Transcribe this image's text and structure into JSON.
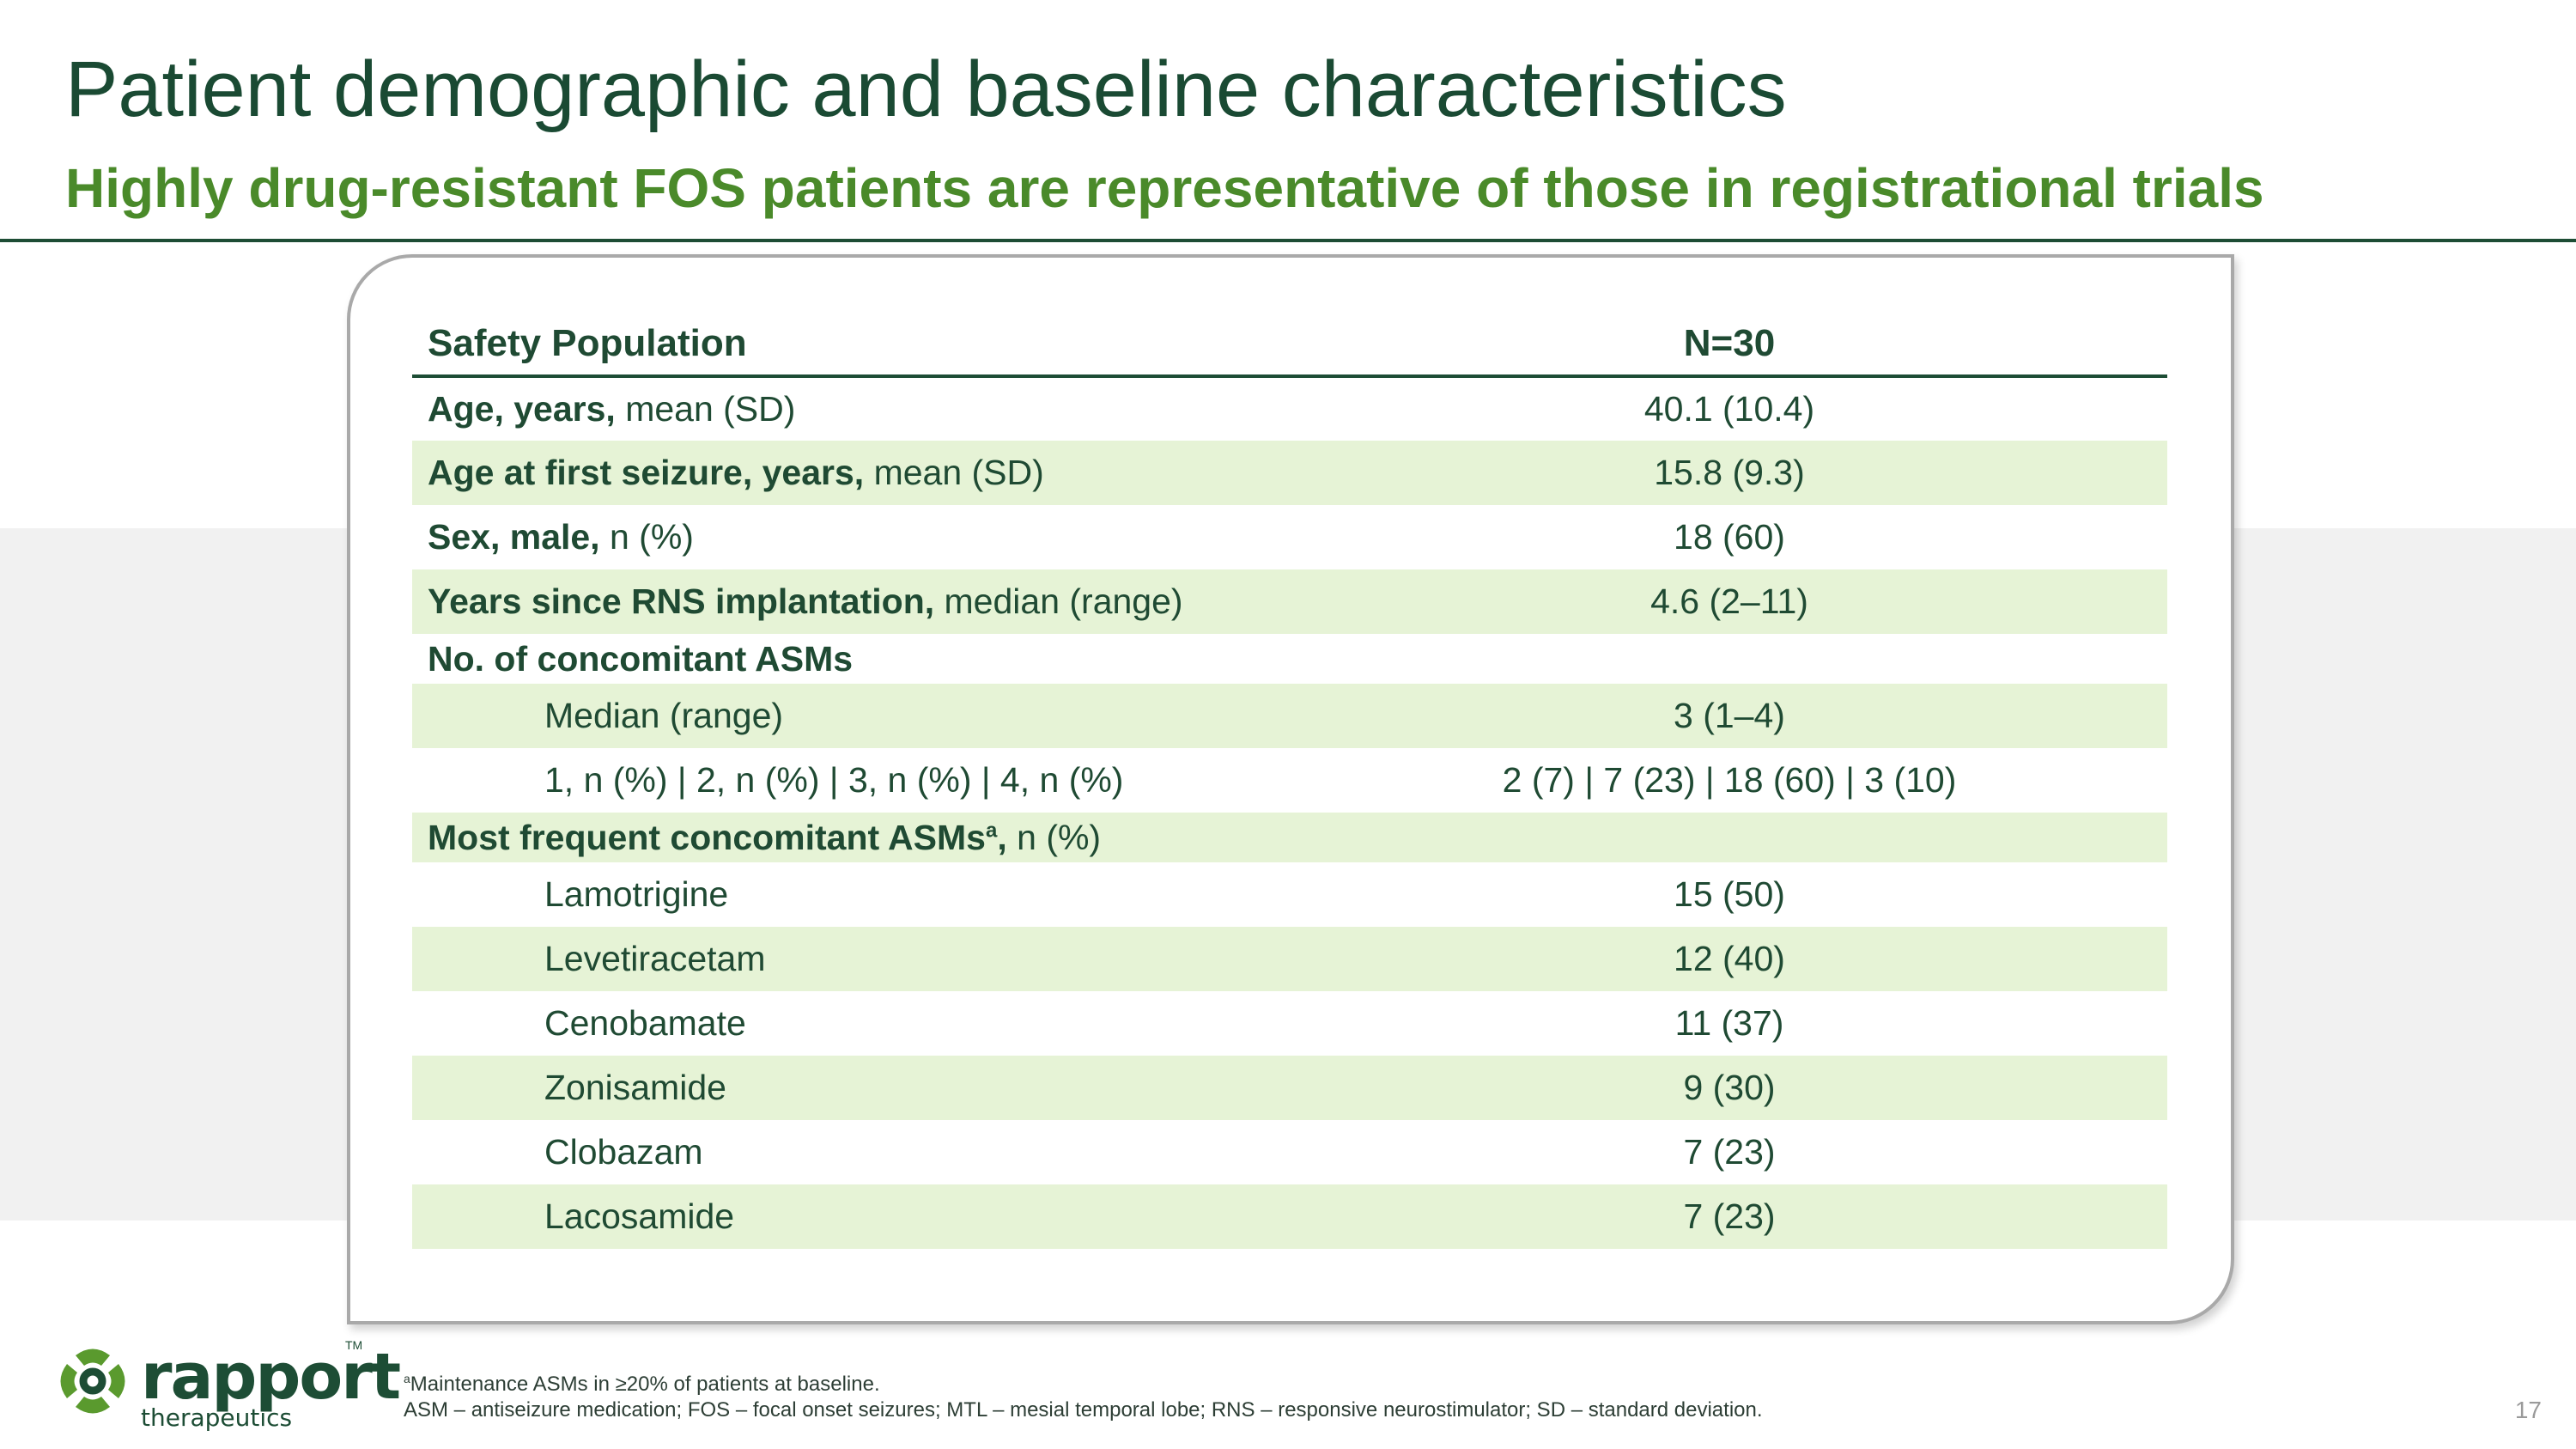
{
  "title": "Patient demographic and baseline characteristics",
  "subtitle": "Highly drug-resistant FOS patients are representative of those in registrational trials",
  "table": {
    "header": {
      "label": "Safety Population",
      "value": "N=30"
    },
    "rows": [
      {
        "bold": "Age, years,",
        "rest": " mean (SD)",
        "value": "40.1 (10.4)"
      },
      {
        "bold": "Age at first seizure, years,",
        "rest": " mean (SD)",
        "value": "15.8 (9.3)"
      },
      {
        "bold": "Sex, male,",
        "rest": " n (%)",
        "value": "18 (60)"
      },
      {
        "bold": "Years since RNS implantation,",
        "rest": " median (range)",
        "value": "4.6 (2–11)"
      },
      {
        "bold": "No. of concomitant ASMs",
        "rest": "",
        "value": ""
      },
      {
        "label": "Median (range)",
        "value": "3 (1–4)"
      },
      {
        "label": "1, n (%) | 2, n (%) | 3, n (%) | 4, n (%)",
        "value": "2 (7) | 7 (23) | 18 (60) | 3 (10)"
      },
      {
        "bold": "Most frequent concomitant ASMs",
        "sup": "a",
        "bold2": ",",
        "rest": " n (%)",
        "value": ""
      },
      {
        "label": "Lamotrigine",
        "value": "15 (50)"
      },
      {
        "label": "Levetiracetam",
        "value": "12 (40)"
      },
      {
        "label": "Cenobamate",
        "value": "11 (37)"
      },
      {
        "label": "Zonisamide",
        "value": "9 (30)"
      },
      {
        "label": "Clobazam",
        "value": "7 (23)"
      },
      {
        "label": "Lacosamide",
        "value": "7 (23)"
      }
    ]
  },
  "logo": {
    "word": "rapport",
    "sub": "therapeutics",
    "tm": "TM"
  },
  "footnotes": {
    "line1_sup": "a",
    "line1": "Maintenance ASMs in ≥20% of patients at baseline.",
    "line2": "ASM – antiseizure medication; FOS – focal onset seizures; MTL – mesial temporal lobe; RNS – responsive neurostimulator; SD – standard deviation."
  },
  "page_number": "17",
  "colors": {
    "title": "#1a4a33",
    "subtitle": "#4a8a2a",
    "row_alt": "#e6f3d6",
    "rule": "#1d4d35"
  }
}
